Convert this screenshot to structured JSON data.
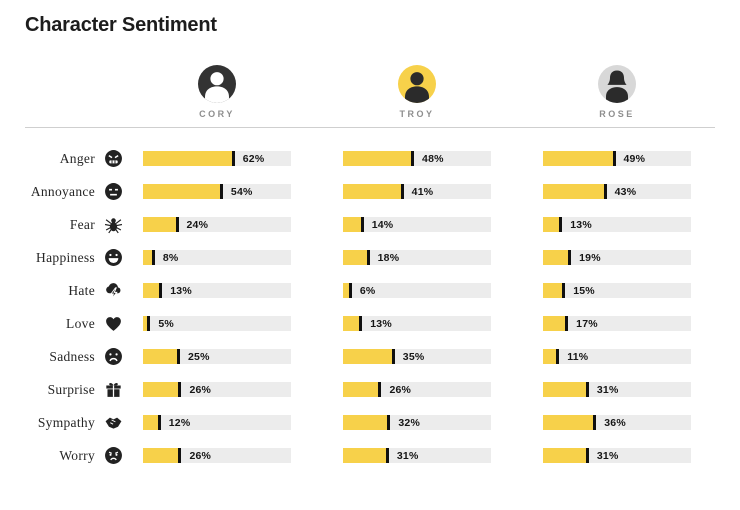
{
  "title": "Character Sentiment",
  "unit": "%",
  "colors": {
    "bar_fill": "#f7d14a",
    "bar_track": "#ececec",
    "tick": "#101010",
    "title_text": "#1d1d1d",
    "label_text": "#262626",
    "muted_text": "#8e8e8e",
    "divider": "#cfcfcf"
  },
  "characters": [
    {
      "name": "CORY",
      "avatar_icon": "man-avatar",
      "avatar_bg": "#333333",
      "silhouette_color": "#ffffff",
      "silhouette": "male"
    },
    {
      "name": "TROY",
      "avatar_icon": "man-avatar",
      "avatar_bg": "#f7d14a",
      "silhouette_color": "#2b2b2b",
      "silhouette": "male"
    },
    {
      "name": "ROSE",
      "avatar_icon": "woman-avatar",
      "avatar_bg": "#d8d8d8",
      "silhouette_color": "#2b2b2b",
      "silhouette": "female"
    }
  ],
  "rows": [
    {
      "label": "Anger",
      "icon": "angry-face-icon",
      "values": [
        62,
        48,
        49
      ]
    },
    {
      "label": "Annoyance",
      "icon": "expressionless-face-icon",
      "values": [
        54,
        41,
        43
      ]
    },
    {
      "label": "Fear",
      "icon": "spider-icon",
      "values": [
        24,
        14,
        13
      ]
    },
    {
      "label": "Happiness",
      "icon": "grinning-face-icon",
      "values": [
        8,
        18,
        19
      ]
    },
    {
      "label": "Hate",
      "icon": "storm-cloud-icon",
      "values": [
        13,
        6,
        15
      ]
    },
    {
      "label": "Love",
      "icon": "heart-icon",
      "values": [
        5,
        13,
        17
      ]
    },
    {
      "label": "Sadness",
      "icon": "sad-face-icon",
      "values": [
        25,
        35,
        11
      ]
    },
    {
      "label": "Surprise",
      "icon": "gift-icon",
      "values": [
        26,
        26,
        31
      ]
    },
    {
      "label": "Sympathy",
      "icon": "handshake-icon",
      "values": [
        12,
        32,
        36
      ]
    },
    {
      "label": "Worry",
      "icon": "worried-face-icon",
      "values": [
        26,
        31,
        31
      ]
    }
  ],
  "chart_data": {
    "type": "bar",
    "orientation": "horizontal",
    "title": "Character Sentiment",
    "categories": [
      "Anger",
      "Annoyance",
      "Fear",
      "Happiness",
      "Hate",
      "Love",
      "Sadness",
      "Surprise",
      "Sympathy",
      "Worry"
    ],
    "series": [
      {
        "name": "Cory",
        "values": [
          62,
          54,
          24,
          8,
          13,
          5,
          25,
          26,
          12,
          26
        ]
      },
      {
        "name": "Troy",
        "values": [
          48,
          41,
          14,
          18,
          6,
          13,
          35,
          26,
          32,
          31
        ]
      },
      {
        "name": "Rose",
        "values": [
          49,
          43,
          13,
          19,
          15,
          17,
          11,
          31,
          36,
          31
        ]
      }
    ],
    "unit": "%",
    "xlim": [
      0,
      100
    ],
    "value_labels": true,
    "grid": false,
    "legend_position": "top"
  }
}
